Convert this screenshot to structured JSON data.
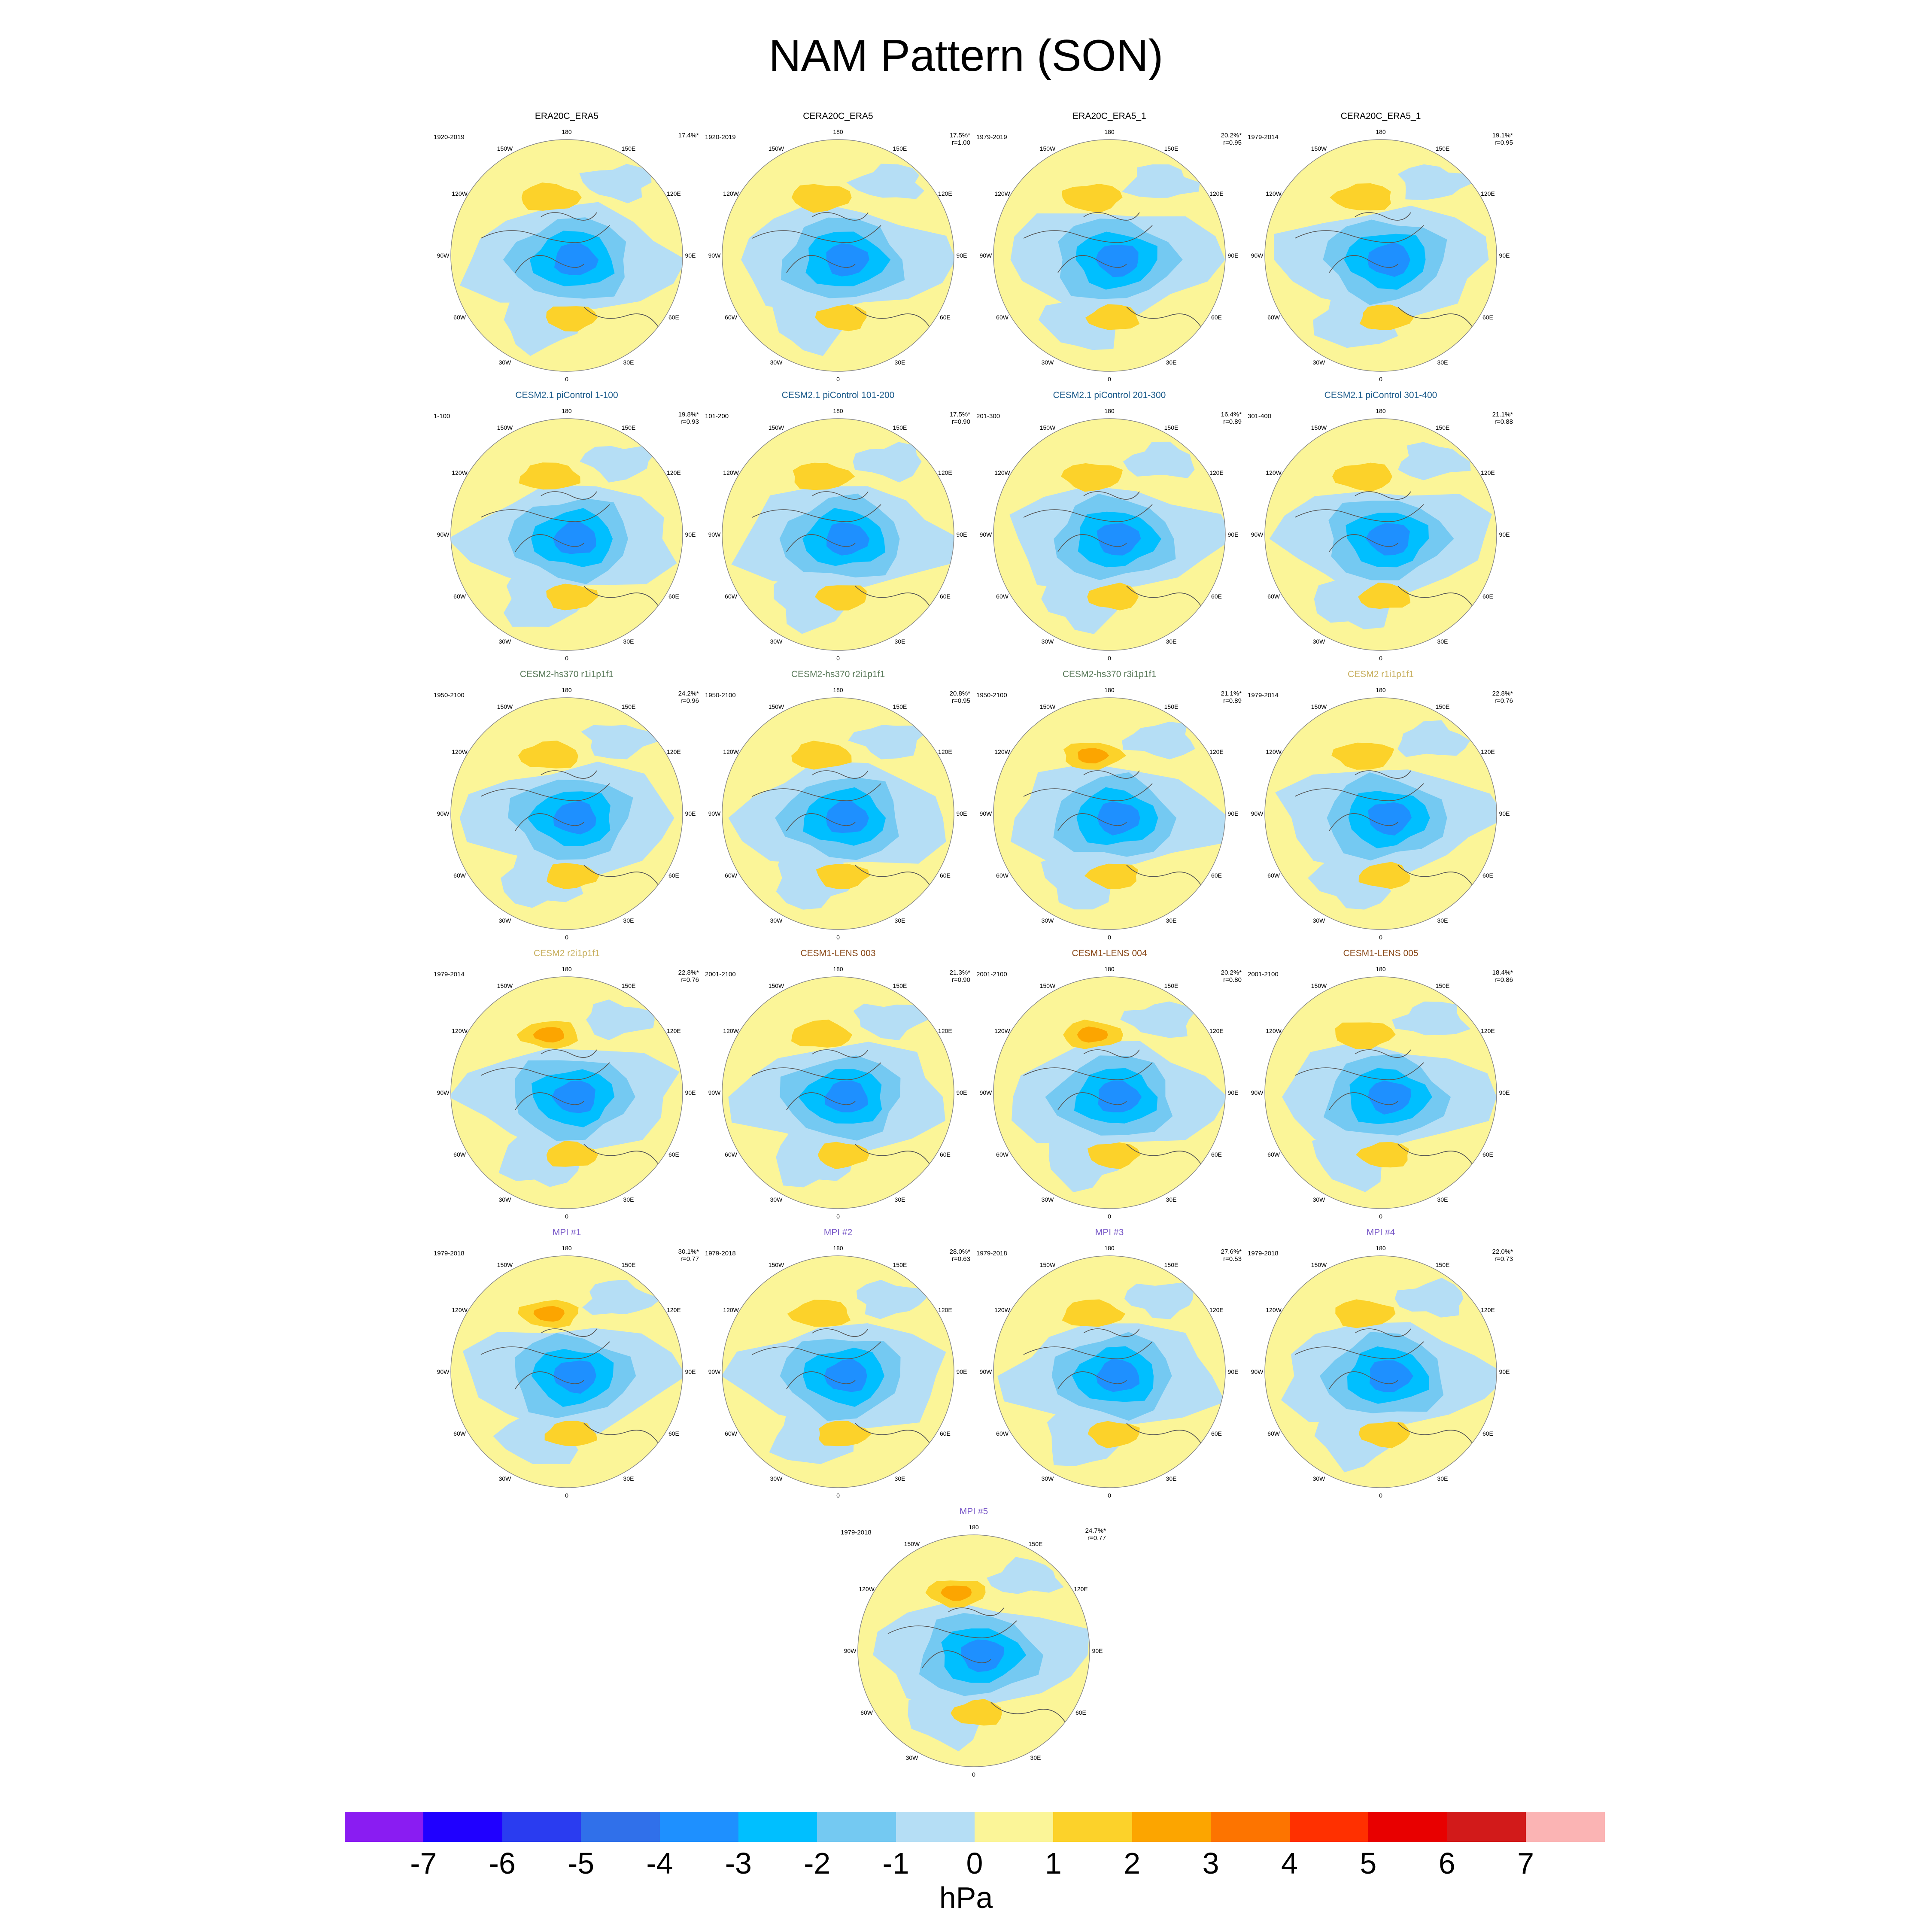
{
  "title": "NAM Pattern (SON)",
  "colors": {
    "levels": [
      "#8a1cf2",
      "#2000ff",
      "#2a3cf0",
      "#3070ea",
      "#1e90ff",
      "#00bfff",
      "#74c9f2",
      "#b5def5",
      "#fbf598",
      "#fcd22a",
      "#fca500",
      "#fd7400",
      "#ff3000",
      "#e80000",
      "#d21a1a",
      "#fbb4b4"
    ],
    "ticks": [
      "-7",
      "-6",
      "-5",
      "-4",
      "-3",
      "-2",
      "-1",
      "0",
      "1",
      "2",
      "3",
      "4",
      "5",
      "6",
      "7"
    ],
    "unit": "hPa"
  },
  "lon_labels": [
    "180",
    "150E",
    "120E",
    "90E",
    "60E",
    "30E",
    "0",
    "30W",
    "60W",
    "90W",
    "120W",
    "150W"
  ],
  "panels": [
    {
      "title": "ERA20C_ERA5",
      "title_color": "#000000",
      "period": "1920-2019",
      "pct": "17.4%*",
      "r": ""
    },
    {
      "title": "CERA20C_ERA5",
      "title_color": "#000000",
      "period": "1920-2019",
      "pct": "17.5%*",
      "r": "r=1.00"
    },
    {
      "title": "ERA20C_ERA5_1",
      "title_color": "#000000",
      "period": "1979-2019",
      "pct": "20.2%*",
      "r": "r=0.95"
    },
    {
      "title": "CERA20C_ERA5_1",
      "title_color": "#000000",
      "period": "1979-2014",
      "pct": "19.1%*",
      "r": "r=0.95"
    },
    {
      "title": "CESM2.1 piControl 1-100",
      "title_color": "#1a5a8a",
      "period": "1-100",
      "pct": "19.8%*",
      "r": "r=0.93"
    },
    {
      "title": "CESM2.1 piControl 101-200",
      "title_color": "#1a5a8a",
      "period": "101-200",
      "pct": "17.5%*",
      "r": "r=0.90"
    },
    {
      "title": "CESM2.1 piControl 201-300",
      "title_color": "#1a5a8a",
      "period": "201-300",
      "pct": "16.4%*",
      "r": "r=0.89"
    },
    {
      "title": "CESM2.1 piControl 301-400",
      "title_color": "#1a5a8a",
      "period": "301-400",
      "pct": "21.1%*",
      "r": "r=0.88"
    },
    {
      "title": "CESM2-hs370 r1i1p1f1",
      "title_color": "#5a7a5a",
      "period": "1950-2100",
      "pct": "24.2%*",
      "r": "r=0.96"
    },
    {
      "title": "CESM2-hs370 r2i1p1f1",
      "title_color": "#5a7a5a",
      "period": "1950-2100",
      "pct": "20.8%*",
      "r": "r=0.95"
    },
    {
      "title": "CESM2-hs370 r3i1p1f1",
      "title_color": "#5a7a5a",
      "period": "1950-2100",
      "pct": "21.1%*",
      "r": "r=0.89"
    },
    {
      "title": "CESM2 r1i1p1f1",
      "title_color": "#c8b060",
      "period": "1979-2014",
      "pct": "22.8%*",
      "r": "r=0.76"
    },
    {
      "title": "CESM2 r2i1p1f1",
      "title_color": "#c8b060",
      "period": "1979-2014",
      "pct": "22.8%*",
      "r": "r=0.76"
    },
    {
      "title": "CESM1-LENS 003",
      "title_color": "#8a4a1a",
      "period": "2001-2100",
      "pct": "21.3%*",
      "r": "r=0.90"
    },
    {
      "title": "CESM1-LENS 004",
      "title_color": "#8a4a1a",
      "period": "2001-2100",
      "pct": "20.2%*",
      "r": "r=0.80"
    },
    {
      "title": "CESM1-LENS 005",
      "title_color": "#8a4a1a",
      "period": "2001-2100",
      "pct": "18.4%*",
      "r": "r=0.86"
    },
    {
      "title": "MPI #1",
      "title_color": "#7a5ac8",
      "period": "1979-2018",
      "pct": "30.1%*",
      "r": "r=0.77"
    },
    {
      "title": "MPI #2",
      "title_color": "#7a5ac8",
      "period": "1979-2018",
      "pct": "28.0%*",
      "r": "r=0.63"
    },
    {
      "title": "MPI #3",
      "title_color": "#7a5ac8",
      "period": "1979-2018",
      "pct": "27.6%*",
      "r": "r=0.53"
    },
    {
      "title": "MPI #4",
      "title_color": "#7a5ac8",
      "period": "1979-2018",
      "pct": "22.0%*",
      "r": "r=0.73"
    },
    {
      "title": "MPI #5",
      "title_color": "#7a5ac8",
      "period": "1979-2018",
      "pct": "24.7%*",
      "r": "r=0.77"
    }
  ]
}
